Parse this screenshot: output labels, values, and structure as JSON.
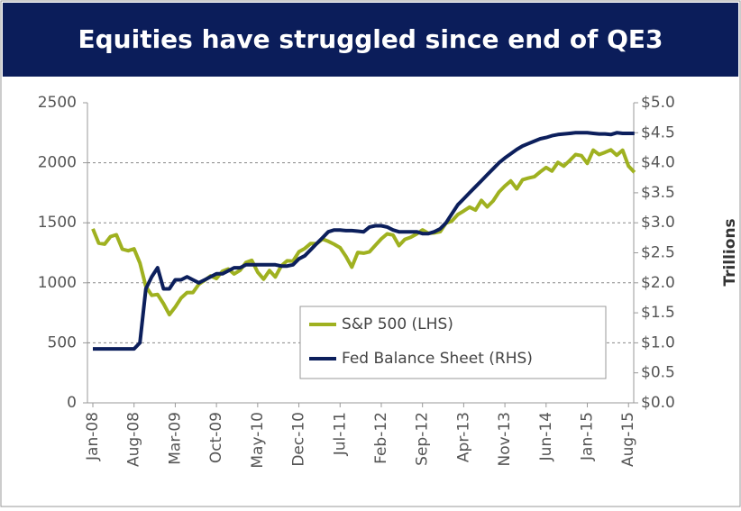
{
  "chart_data": {
    "type": "line",
    "title": "Equities have struggled since end of QE3",
    "y2label": "Trillions",
    "categories": [
      "Jan-08",
      null,
      null,
      null,
      null,
      null,
      null,
      "Aug-08",
      null,
      null,
      null,
      null,
      null,
      null,
      "Mar-09",
      null,
      null,
      null,
      null,
      null,
      null,
      "Oct-09",
      null,
      null,
      null,
      null,
      null,
      null,
      "May-10",
      null,
      null,
      null,
      null,
      null,
      null,
      "Dec-10",
      null,
      null,
      null,
      null,
      null,
      null,
      "Jul-11",
      null,
      null,
      null,
      null,
      null,
      null,
      "Feb-12",
      null,
      null,
      null,
      null,
      null,
      null,
      "Sep-12",
      null,
      null,
      null,
      null,
      null,
      null,
      "Apr-13",
      null,
      null,
      null,
      null,
      null,
      null,
      "Nov-13",
      null,
      null,
      null,
      null,
      null,
      null,
      "Jun-14",
      null,
      null,
      null,
      null,
      null,
      null,
      "Jan-15",
      null,
      null,
      null,
      null,
      null,
      null,
      "Aug-15",
      null
    ],
    "series": [
      {
        "name": "S&P 500 (LHS)",
        "color": "#9fb120",
        "values": [
          1450,
          1330,
          1322,
          1385,
          1400,
          1280,
          1267,
          1283,
          1165,
          969,
          896,
          903,
          826,
          735,
          798,
          873,
          919,
          919,
          987,
          1021,
          1057,
          1036,
          1096,
          1115,
          1074,
          1104,
          1169,
          1187,
          1089,
          1031,
          1102,
          1049,
          1141,
          1183,
          1181,
          1258,
          1286,
          1327,
          1326,
          1364,
          1345,
          1321,
          1292,
          1219,
          1131,
          1253,
          1247,
          1258,
          1312,
          1366,
          1408,
          1398,
          1310,
          1362,
          1379,
          1407,
          1441,
          1412,
          1416,
          1426,
          1498,
          1515,
          1569,
          1598,
          1631,
          1606,
          1686,
          1633,
          1682,
          1757,
          1806,
          1848,
          1783,
          1859,
          1872,
          1884,
          1924,
          1960,
          1931,
          2003,
          1972,
          2018,
          2068,
          2059,
          1995,
          2105,
          2068,
          2086,
          2107,
          2063,
          2104,
          1972,
          1920
        ]
      },
      {
        "name": "Fed Balance Sheet (RHS)",
        "color": "#0c1f5c",
        "axis": "y2",
        "values": [
          0.9,
          0.9,
          0.9,
          0.9,
          0.9,
          0.9,
          0.9,
          0.9,
          1.0,
          1.9,
          2.1,
          2.25,
          1.9,
          1.9,
          2.05,
          2.05,
          2.1,
          2.05,
          2.0,
          2.05,
          2.1,
          2.15,
          2.15,
          2.2,
          2.25,
          2.25,
          2.3,
          2.3,
          2.3,
          2.3,
          2.3,
          2.3,
          2.28,
          2.28,
          2.3,
          2.4,
          2.45,
          2.55,
          2.65,
          2.75,
          2.85,
          2.88,
          2.88,
          2.87,
          2.87,
          2.86,
          2.85,
          2.93,
          2.95,
          2.95,
          2.93,
          2.88,
          2.85,
          2.85,
          2.85,
          2.85,
          2.82,
          2.82,
          2.85,
          2.9,
          3.0,
          3.15,
          3.3,
          3.4,
          3.5,
          3.6,
          3.7,
          3.8,
          3.9,
          4.0,
          4.08,
          4.15,
          4.22,
          4.28,
          4.32,
          4.36,
          4.4,
          4.42,
          4.45,
          4.47,
          4.48,
          4.49,
          4.5,
          4.5,
          4.5,
          4.49,
          4.48,
          4.48,
          4.47,
          4.5,
          4.49,
          4.49,
          4.49
        ]
      }
    ],
    "ylim": [
      0,
      2500
    ],
    "yticks": [
      0,
      500,
      1000,
      1500,
      2000,
      2500
    ],
    "y2lim": [
      0,
      5
    ],
    "y2ticks": [
      {
        "value": 0,
        "label": "$0.0"
      },
      {
        "value": 0.5,
        "label": "$0.5"
      },
      {
        "value": 1,
        "label": "$1.0"
      },
      {
        "value": 1.5,
        "label": "$1.5"
      },
      {
        "value": 2,
        "label": "$2.0"
      },
      {
        "value": 2.5,
        "label": "$2.5"
      },
      {
        "value": 3,
        "label": "$3.0"
      },
      {
        "value": 3.5,
        "label": "$3.5"
      },
      {
        "value": 4,
        "label": "$4.0"
      },
      {
        "value": 4.5,
        "label": "$4.5"
      },
      {
        "value": 5,
        "label": "$5.0"
      }
    ],
    "grid": true,
    "legend": "lower right"
  }
}
